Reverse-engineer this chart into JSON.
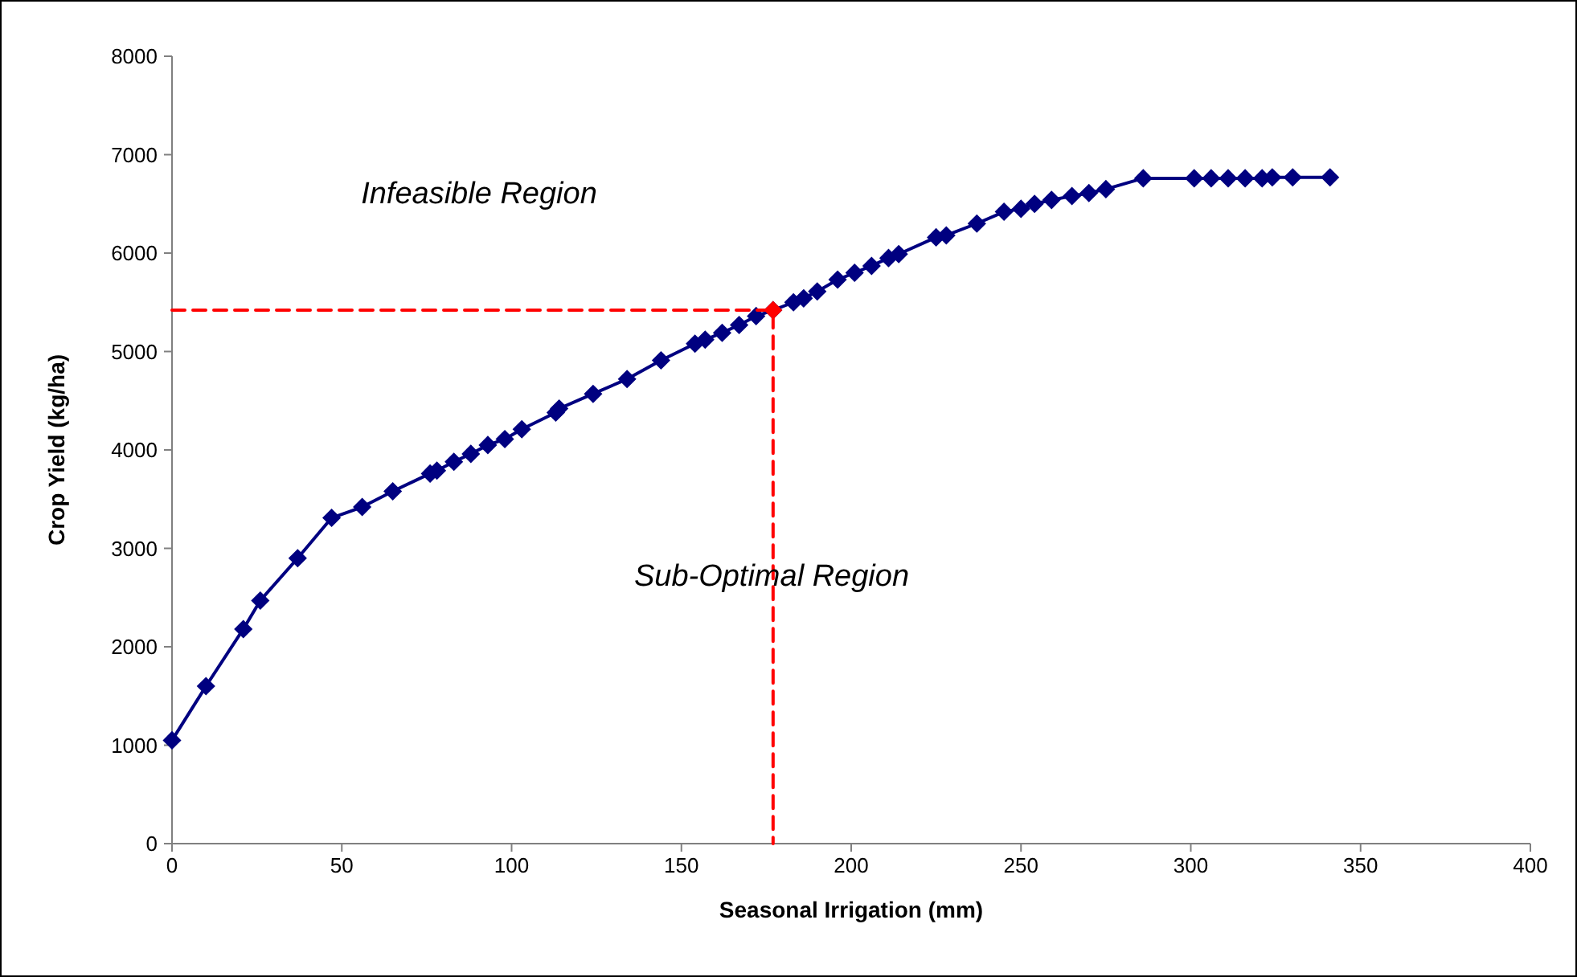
{
  "chart_data": {
    "type": "line",
    "xlabel": "Seasonal Irrigation (mm)",
    "ylabel": "Crop Yield (kg/ha)",
    "xlim": [
      0,
      400
    ],
    "xticks": [
      0,
      50,
      100,
      150,
      200,
      250,
      300,
      350,
      400
    ],
    "ylim": [
      0,
      8000
    ],
    "yticks": [
      0,
      1000,
      2000,
      3000,
      4000,
      5000,
      6000,
      7000,
      8000
    ],
    "grid": false,
    "series": [
      {
        "color": "#000080",
        "marker": "diamond",
        "line_style": "solid",
        "x": [
          0,
          10,
          21,
          26,
          37,
          47,
          56,
          65,
          76,
          78,
          83,
          88,
          93,
          98,
          103,
          113,
          114,
          124,
          134,
          144,
          154,
          157,
          162,
          167,
          172,
          177,
          183,
          186,
          190,
          196,
          201,
          206,
          211,
          214,
          225,
          228,
          237,
          245,
          250,
          254,
          259,
          265,
          270,
          275,
          286,
          301,
          306,
          311,
          316,
          321,
          324,
          330,
          341
        ],
        "values": [
          1050,
          1600,
          2180,
          2470,
          2900,
          3310,
          3420,
          3580,
          3760,
          3790,
          3880,
          3960,
          4050,
          4110,
          4210,
          4380,
          4420,
          4570,
          4720,
          4910,
          5080,
          5120,
          5190,
          5270,
          5360,
          5420,
          5500,
          5540,
          5610,
          5730,
          5800,
          5870,
          5950,
          5990,
          6160,
          6180,
          6300,
          6420,
          6450,
          6500,
          6540,
          6580,
          6610,
          6650,
          6760,
          6760,
          6760,
          6760,
          6760,
          6760,
          6770,
          6770,
          6770
        ]
      },
      {
        "color": "#ff0000",
        "marker": "none",
        "line_style": "dashed",
        "x": [
          0,
          177,
          177
        ],
        "values": [
          5420,
          5420,
          0
        ]
      },
      {
        "type": "scatter",
        "color": "#ff0000",
        "marker": "diamond",
        "x": [
          177
        ],
        "values": [
          5420
        ]
      }
    ],
    "annotations": [
      "Infeasible Region",
      "Sub-Optimal Region"
    ]
  }
}
